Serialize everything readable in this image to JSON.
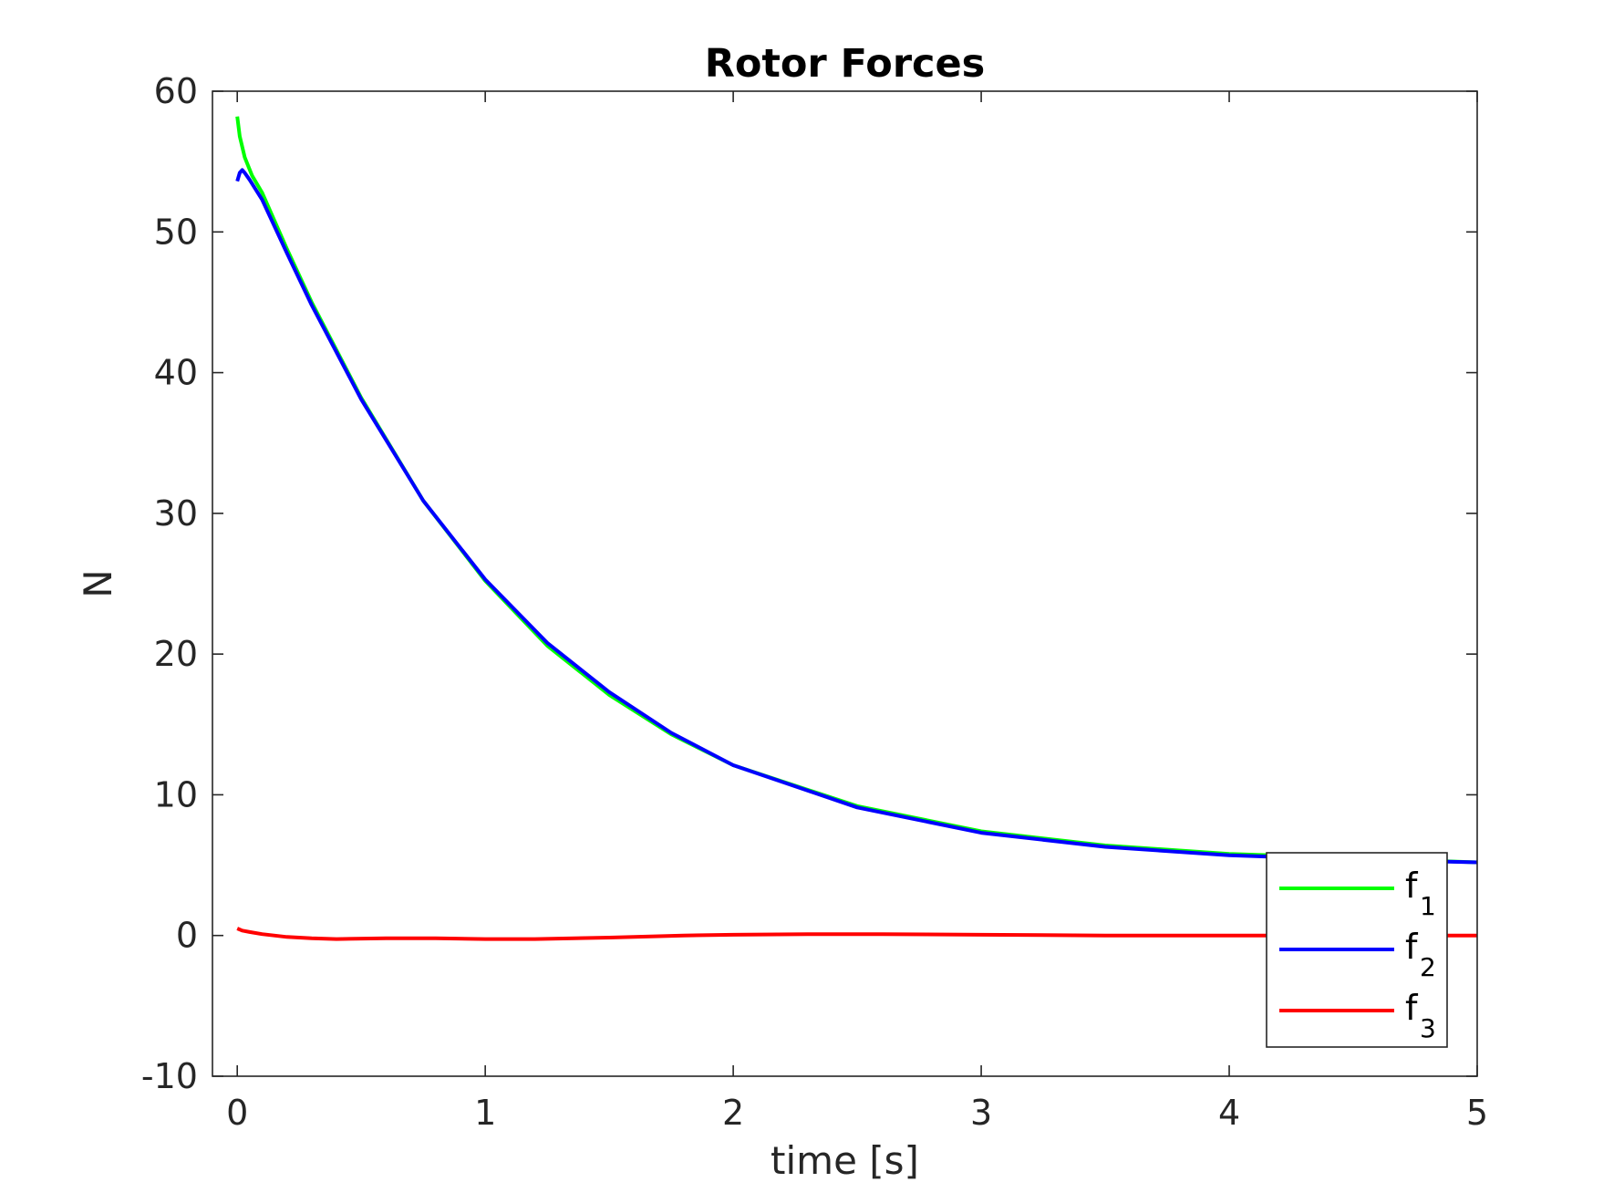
{
  "chart_data": {
    "type": "line",
    "title": "Rotor Forces",
    "xlabel": "time [s]",
    "ylabel": "N",
    "xlim": [
      -0.1,
      5
    ],
    "ylim": [
      -10,
      60
    ],
    "xticks": [
      0,
      1,
      2,
      3,
      4,
      5
    ],
    "xtick_labels": [
      "0",
      "1",
      "2",
      "3",
      "4",
      "5"
    ],
    "yticks": [
      -10,
      0,
      10,
      20,
      30,
      40,
      50,
      60
    ],
    "ytick_labels": [
      "-10",
      "0",
      "10",
      "20",
      "30",
      "40",
      "50",
      "60"
    ],
    "grid": false,
    "legend_position": "bottom-right",
    "series": [
      {
        "name": "f",
        "subscript": "1",
        "color": "#00ff00",
        "x": [
          0,
          0.01,
          0.03,
          0.06,
          0.1,
          0.2,
          0.3,
          0.5,
          0.75,
          1.0,
          1.25,
          1.5,
          1.75,
          2.0,
          2.5,
          3.0,
          3.5,
          4.0,
          4.5,
          5.0
        ],
        "y": [
          58.2,
          56.8,
          55.3,
          54.0,
          52.8,
          48.8,
          45.0,
          38.2,
          30.9,
          25.2,
          20.6,
          17.1,
          14.3,
          12.1,
          9.2,
          7.4,
          6.4,
          5.8,
          5.5,
          5.2
        ]
      },
      {
        "name": "f",
        "subscript": "2",
        "color": "#0000ff",
        "x": [
          0,
          0.01,
          0.02,
          0.03,
          0.05,
          0.1,
          0.2,
          0.3,
          0.5,
          0.75,
          1.0,
          1.25,
          1.5,
          1.75,
          2.0,
          2.5,
          3.0,
          3.5,
          4.0,
          4.5,
          5.0
        ],
        "y": [
          53.6,
          54.2,
          54.4,
          54.2,
          53.7,
          52.3,
          48.5,
          44.8,
          38.1,
          30.9,
          25.3,
          20.8,
          17.3,
          14.4,
          12.1,
          9.1,
          7.3,
          6.3,
          5.7,
          5.4,
          5.2
        ]
      },
      {
        "name": "f",
        "subscript": "3",
        "color": "#ff0000",
        "x": [
          0,
          0.02,
          0.05,
          0.1,
          0.2,
          0.3,
          0.4,
          0.6,
          0.8,
          1.0,
          1.2,
          1.5,
          1.8,
          2.0,
          2.3,
          2.6,
          3.0,
          3.5,
          4.0,
          4.5,
          5.0
        ],
        "y": [
          0.5,
          0.35,
          0.25,
          0.1,
          -0.1,
          -0.2,
          -0.25,
          -0.2,
          -0.2,
          -0.25,
          -0.25,
          -0.15,
          0.0,
          0.05,
          0.1,
          0.1,
          0.05,
          0.0,
          0.0,
          0.0,
          0.0
        ]
      }
    ]
  }
}
